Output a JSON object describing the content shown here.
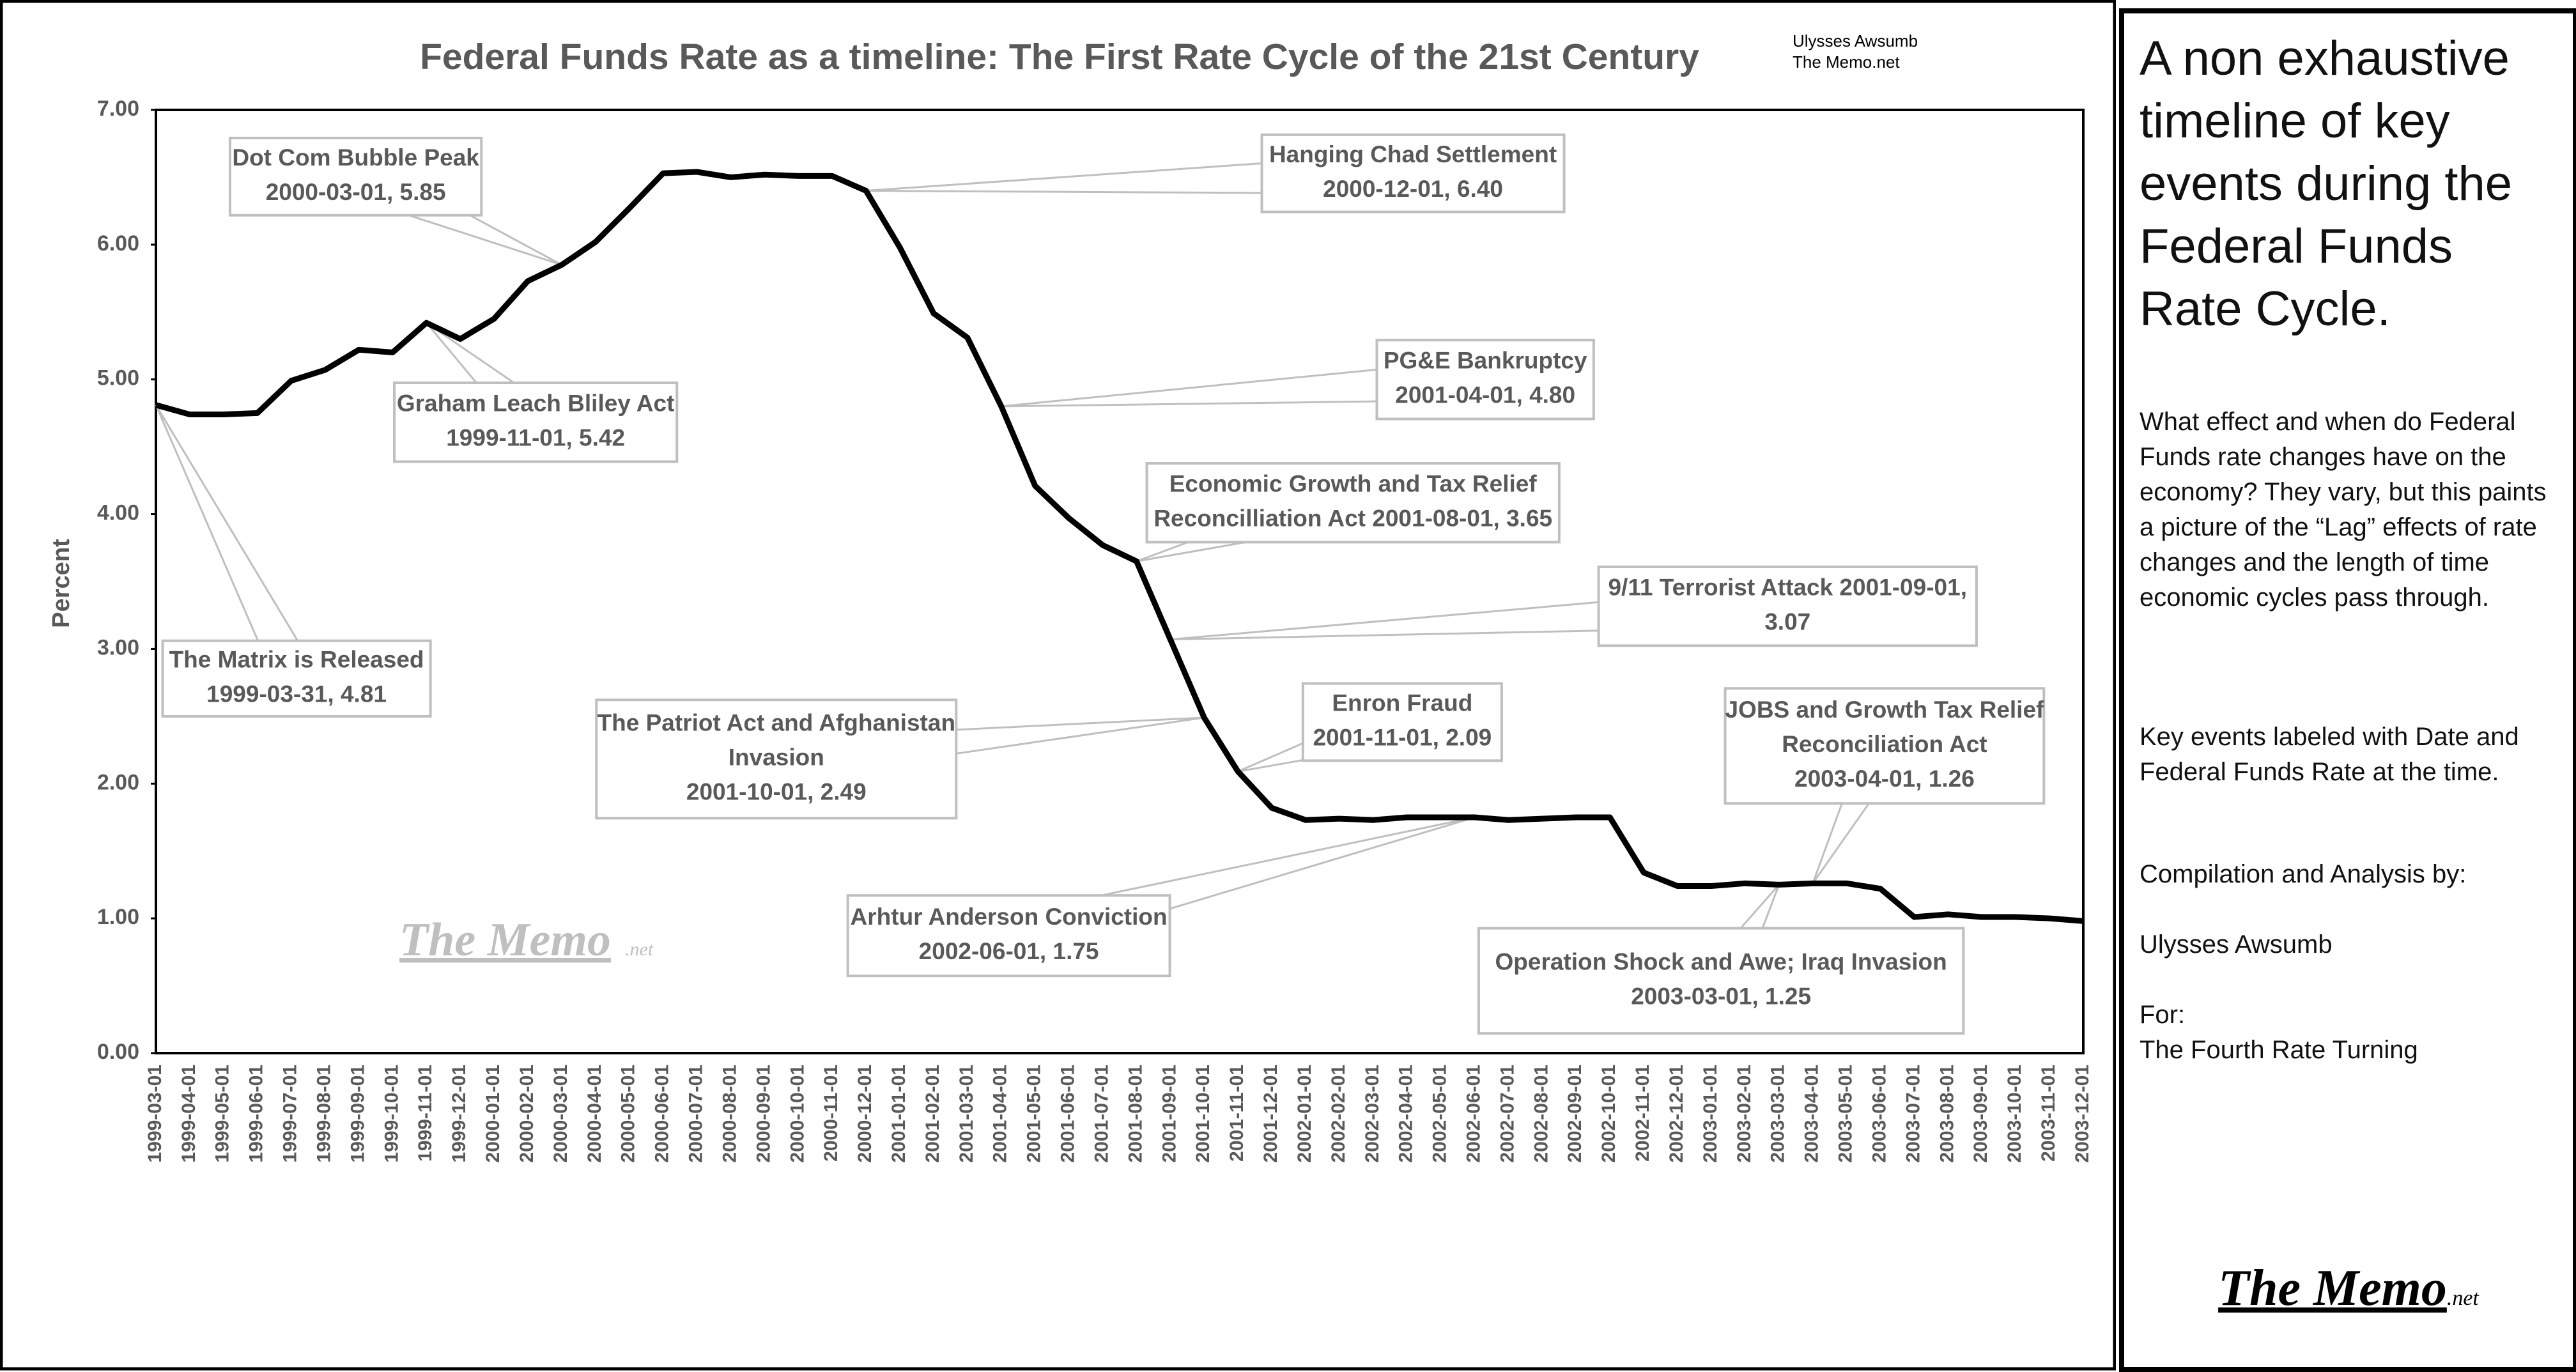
{
  "chart_data": {
    "type": "line",
    "title": "Federal Funds Rate as a timeline: The First Rate Cycle of the 21st Century",
    "credits": [
      "Ulysses Awsumb",
      "The Memo.net"
    ],
    "y_label": "Percent",
    "watermark": {
      "text": "The Memo",
      "suffix": ".net"
    },
    "categories": [
      "1999-03-01",
      "1999-04-01",
      "1999-05-01",
      "1999-06-01",
      "1999-07-01",
      "1999-08-01",
      "1999-09-01",
      "1999-10-01",
      "1999-11-01",
      "1999-12-01",
      "2000-01-01",
      "2000-02-01",
      "2000-03-01",
      "2000-04-01",
      "2000-05-01",
      "2000-06-01",
      "2000-07-01",
      "2000-08-01",
      "2000-09-01",
      "2000-10-01",
      "2000-11-01",
      "2000-12-01",
      "2001-01-01",
      "2001-02-01",
      "2001-03-01",
      "2001-04-01",
      "2001-05-01",
      "2001-06-01",
      "2001-07-01",
      "2001-08-01",
      "2001-09-01",
      "2001-10-01",
      "2001-11-01",
      "2001-12-01",
      "2002-01-01",
      "2002-02-01",
      "2002-03-01",
      "2002-04-01",
      "2002-05-01",
      "2002-06-01",
      "2002-07-01",
      "2002-08-01",
      "2002-09-01",
      "2002-10-01",
      "2002-11-01",
      "2002-12-01",
      "2003-01-01",
      "2003-02-01",
      "2003-03-01",
      "2003-04-01",
      "2003-05-01",
      "2003-06-01",
      "2003-07-01",
      "2003-08-01",
      "2003-09-01",
      "2003-10-01",
      "2003-11-01",
      "2003-12-01"
    ],
    "series": [
      {
        "color": "#000000",
        "values": [
          4.81,
          4.74,
          4.74,
          4.75,
          4.99,
          5.07,
          5.22,
          5.2,
          5.42,
          5.3,
          5.45,
          5.73,
          5.85,
          6.02,
          6.27,
          6.53,
          6.54,
          6.5,
          6.52,
          6.51,
          6.51,
          6.4,
          5.98,
          5.49,
          5.31,
          4.8,
          4.21,
          3.97,
          3.77,
          3.65,
          3.07,
          2.49,
          2.09,
          1.82,
          1.73,
          1.74,
          1.73,
          1.75,
          1.75,
          1.75,
          1.73,
          1.74,
          1.75,
          1.75,
          1.34,
          1.24,
          1.24,
          1.26,
          1.25,
          1.26,
          1.26,
          1.22,
          1.01,
          1.03,
          1.01,
          1.01,
          1.0,
          0.98
        ]
      }
    ],
    "ylim": [
      0,
      7
    ],
    "yticks": [
      {
        "value": 0,
        "label": "0.00"
      },
      {
        "value": 1,
        "label": "1.00"
      },
      {
        "value": 2,
        "label": "2.00"
      },
      {
        "value": 3,
        "label": "3.00"
      },
      {
        "value": 4,
        "label": "4.00"
      },
      {
        "value": 5,
        "label": "5.00"
      },
      {
        "value": 6,
        "label": "6.00"
      },
      {
        "value": 7,
        "label": "7.00"
      }
    ],
    "annotations": [
      {
        "lines": [
          "Dot Com Bubble Peak",
          "2000-03-01, 5.85"
        ]
      },
      {
        "lines": [
          "Hanging Chad Settlement",
          "2000-12-01, 6.40"
        ]
      },
      {
        "lines": [
          "Graham Leach Bliley Act",
          "1999-11-01, 5.42"
        ]
      },
      {
        "lines": [
          "PG&E Bankruptcy",
          "2001-04-01, 4.80"
        ]
      },
      {
        "lines": [
          "Economic Growth and Tax Relief",
          "Reconcilliation Act 2001-08-01, 3.65"
        ]
      },
      {
        "lines": [
          "9/11 Terrorist Attack 2001-09-01,",
          "3.07"
        ]
      },
      {
        "lines": [
          "The Matrix is Released",
          "1999-03-31, 4.81"
        ]
      },
      {
        "lines": [
          "The Patriot Act and Afghanistan",
          "Invasion",
          "2001-10-01, 2.49"
        ]
      },
      {
        "lines": [
          "Enron Fraud",
          "2001-11-01, 2.09"
        ]
      },
      {
        "lines": [
          "JOBS and Growth Tax Relief",
          "Reconciliation Act",
          "2003-04-01, 1.26"
        ]
      },
      {
        "lines": [
          "Arhtur Anderson Conviction",
          "2002-06-01, 1.75"
        ]
      },
      {
        "lines": [
          "Operation Shock and Awe; Iraq Invasion",
          "2003-03-01, 1.25"
        ]
      }
    ]
  },
  "side_panel": {
    "heading": "A non exhaustive timeline of key events during the Federal Funds Rate Cycle.",
    "paragraphs": [
      "What effect and when do Federal Funds rate changes have on the economy? They vary, but this paints a picture of the “Lag” effects of rate changes and the length of time economic cycles pass through.",
      "Key events labeled with Date and Federal Funds Rate at the time.",
      "Compilation and Analysis by:",
      "Ulysses Awsumb",
      "For:",
      "The Fourth Rate Turning"
    ],
    "logo": {
      "text": "The Memo",
      "suffix": ".net"
    }
  }
}
